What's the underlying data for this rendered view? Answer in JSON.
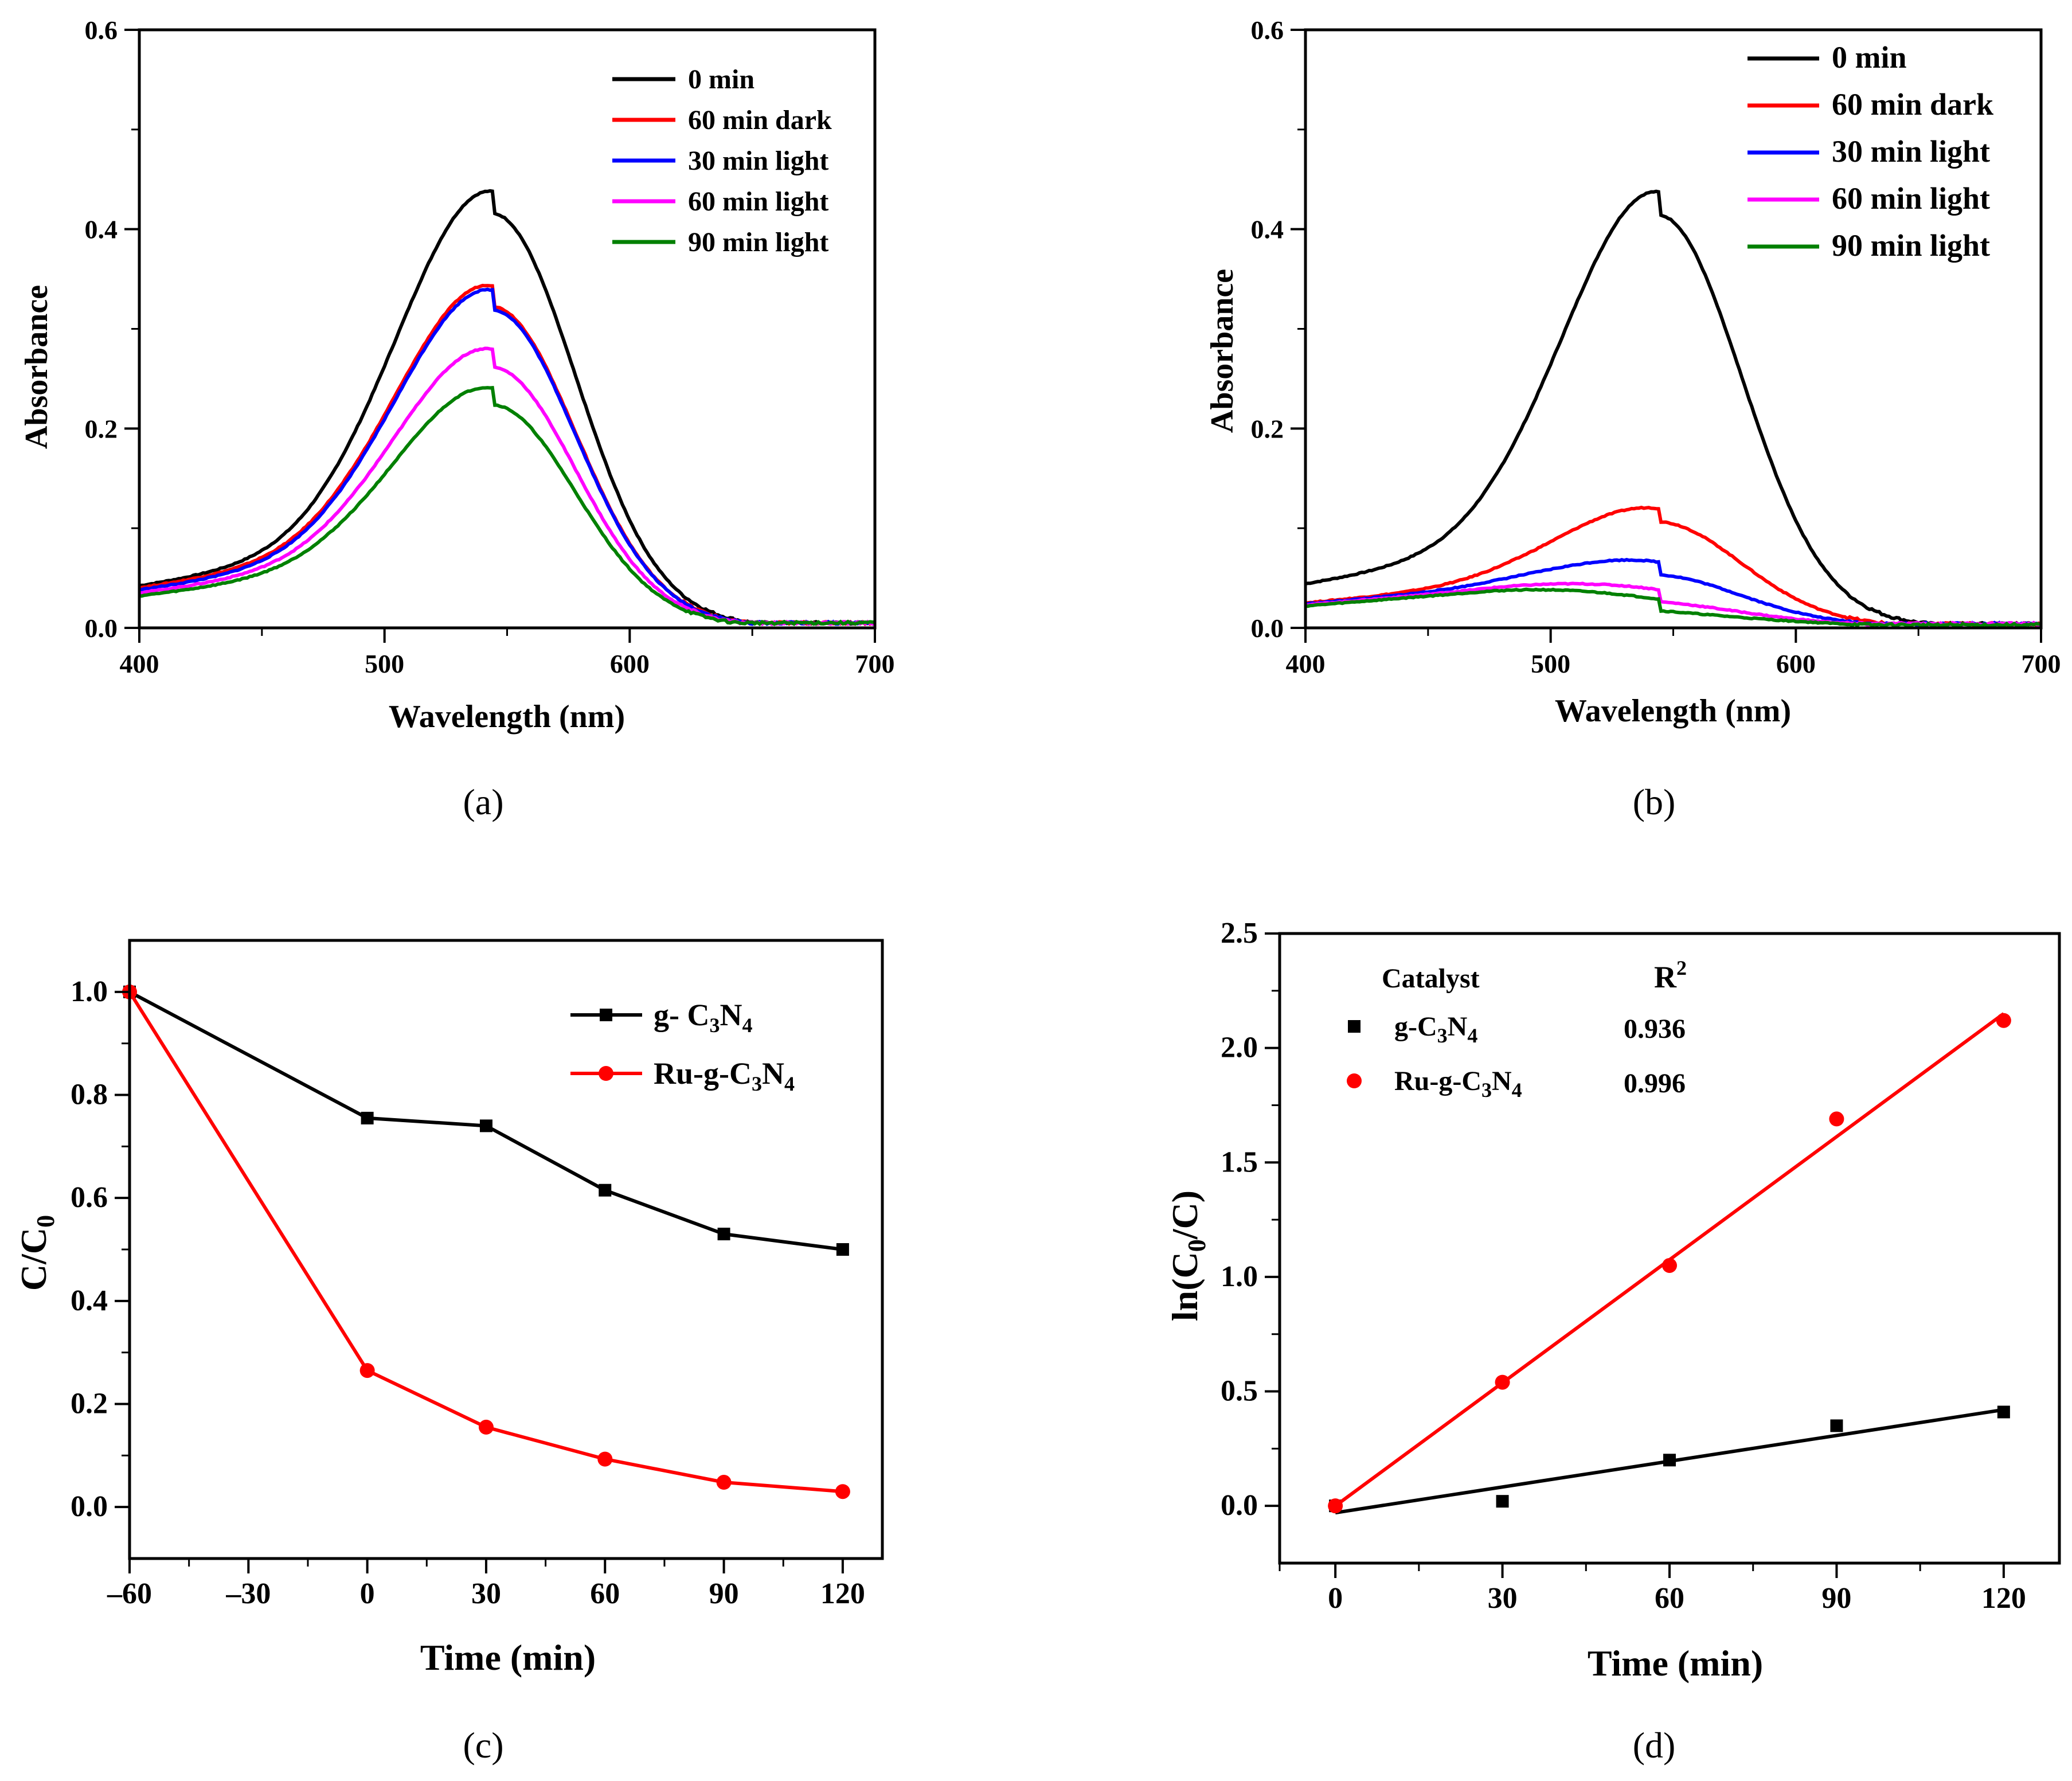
{
  "chart_data": [
    {
      "panel": "a",
      "caption": "(a)",
      "type": "line",
      "xlabel": "Wavelength (nm)",
      "ylabel": "Absorbance",
      "xlim": [
        400,
        700
      ],
      "ylim": [
        0,
        0.6
      ],
      "xticks": [
        400,
        500,
        600,
        700
      ],
      "yticks": [
        0.0,
        0.2,
        0.4,
        0.6
      ],
      "xtick_labels": [
        "400",
        "500",
        "600",
        "700"
      ],
      "ytick_labels": [
        "0.0",
        "0.2",
        "0.4",
        "0.6"
      ],
      "grid": false,
      "legend_position": "top-right",
      "series": [
        {
          "name": "0 min",
          "color": "#000000",
          "peak": 0.45,
          "peak_x": 545,
          "shoulder": 0.042,
          "tail": 0.005
        },
        {
          "name": "60 min dark",
          "color": "#ff0000",
          "peak": 0.355,
          "peak_x": 545,
          "shoulder": 0.04,
          "tail": 0.005
        },
        {
          "name": "30 min light",
          "color": "#0000ff",
          "peak": 0.35,
          "peak_x": 545,
          "shoulder": 0.038,
          "tail": 0.005
        },
        {
          "name": "60 min light",
          "color": "#ff00ff",
          "peak": 0.29,
          "peak_x": 545,
          "shoulder": 0.035,
          "tail": 0.005
        },
        {
          "name": "90 min light",
          "color": "#008000",
          "peak": 0.25,
          "peak_x": 545,
          "shoulder": 0.032,
          "tail": 0.005
        }
      ]
    },
    {
      "panel": "b",
      "caption": "(b)",
      "type": "line",
      "xlabel": "Wavelength (nm)",
      "ylabel": "Absorbance",
      "xlim": [
        400,
        700
      ],
      "ylim": [
        0,
        0.6
      ],
      "xticks": [
        400,
        500,
        600,
        700
      ],
      "yticks": [
        0.0,
        0.2,
        0.4,
        0.6
      ],
      "xtick_labels": [
        "400",
        "500",
        "600",
        "700"
      ],
      "ytick_labels": [
        "0.0",
        "0.2",
        "0.4",
        "0.6"
      ],
      "grid": false,
      "legend_position": "top-right",
      "series": [
        {
          "name": "0 min",
          "color": "#000000",
          "peak": 0.45,
          "peak_x": 545,
          "shoulder": 0.044,
          "tail": 0.004
        },
        {
          "name": "60 min dark",
          "color": "#ff0000",
          "peak": 0.127,
          "peak_x": 545,
          "shoulder": 0.025,
          "tail": 0.004
        },
        {
          "name": "30 min light",
          "color": "#0000ff",
          "peak": 0.073,
          "peak_x": 545,
          "shoulder": 0.024,
          "tail": 0.004
        },
        {
          "name": "60 min light",
          "color": "#ff00ff",
          "peak": 0.045,
          "peak_x": 545,
          "shoulder": 0.023,
          "tail": 0.004
        },
        {
          "name": "90 min light",
          "color": "#008000",
          "peak": 0.023,
          "peak_x": 545,
          "shoulder": 0.022,
          "tail": 0.003
        }
      ]
    },
    {
      "panel": "c",
      "caption": "(c)",
      "type": "line",
      "xlabel": "Time (min)",
      "ylabel": "C/C",
      "ylabel_sub": "0",
      "xlim": [
        -60,
        130
      ],
      "ylim": [
        -0.1,
        1.1
      ],
      "xticks": [
        -60,
        -30,
        0,
        30,
        60,
        90,
        120
      ],
      "yticks": [
        0.0,
        0.2,
        0.4,
        0.6,
        0.8,
        1.0
      ],
      "xtick_labels": [
        "–60",
        "–30",
        "0",
        "30",
        "60",
        "90",
        "120"
      ],
      "ytick_labels": [
        "0.0",
        "0.2",
        "0.4",
        "0.6",
        "0.8",
        "1.0"
      ],
      "grid": false,
      "legend_position": "top-right",
      "series": [
        {
          "name": "g- C",
          "sub1": "3",
          "mid": "N",
          "sub2": "4",
          "color": "#000000",
          "marker": "square",
          "x": [
            -60,
            0,
            30,
            60,
            90,
            120
          ],
          "y": [
            1.0,
            0.755,
            0.74,
            0.615,
            0.53,
            0.5
          ]
        },
        {
          "name": "Ru-g-C",
          "sub1": "3",
          "mid": "N",
          "sub2": "4",
          "color": "#ff0000",
          "marker": "circle",
          "x": [
            -60,
            0,
            30,
            60,
            90,
            120
          ],
          "y": [
            1.0,
            0.265,
            0.155,
            0.093,
            0.048,
            0.03
          ]
        }
      ]
    },
    {
      "panel": "d",
      "caption": "(d)",
      "type": "scatter",
      "xlabel": "Time (min)",
      "ylabel": "ln(C",
      "ylabel_sub": "0",
      "ylabel_tail": "/C)",
      "xlim": [
        -10,
        130
      ],
      "ylim": [
        -0.25,
        2.5
      ],
      "xticks": [
        0,
        30,
        60,
        90,
        120
      ],
      "yticks": [
        0.0,
        0.5,
        1.0,
        1.5,
        2.0,
        2.5
      ],
      "xtick_labels": [
        "0",
        "30",
        "60",
        "90",
        "120"
      ],
      "ytick_labels": [
        "0.0",
        "0.5",
        "1.0",
        "1.5",
        "2.0",
        "2.5"
      ],
      "grid": false,
      "legend_position": "top-left",
      "legend_header": {
        "catalyst": "Catalyst",
        "r2": "R",
        "r2_sup": "2"
      },
      "series": [
        {
          "name": "g-C",
          "sub1": "3",
          "mid": "N",
          "sub2": "4",
          "color": "#000000",
          "marker": "square",
          "r2": "0.936",
          "x": [
            0,
            30,
            60,
            90,
            120
          ],
          "y": [
            0.0,
            0.02,
            0.2,
            0.35,
            0.41
          ],
          "fit": {
            "x": [
              0,
              120
            ],
            "y": [
              -0.03,
              0.42
            ]
          }
        },
        {
          "name": "Ru-g-C",
          "sub1": "3",
          "mid": "N",
          "sub2": "4",
          "color": "#ff0000",
          "marker": "circle",
          "r2": "0.996",
          "x": [
            0,
            30,
            60,
            90,
            120
          ],
          "y": [
            0.0,
            0.54,
            1.05,
            1.69,
            2.12
          ],
          "fit": {
            "x": [
              0,
              120
            ],
            "y": [
              0.0,
              2.15
            ]
          }
        }
      ]
    }
  ]
}
